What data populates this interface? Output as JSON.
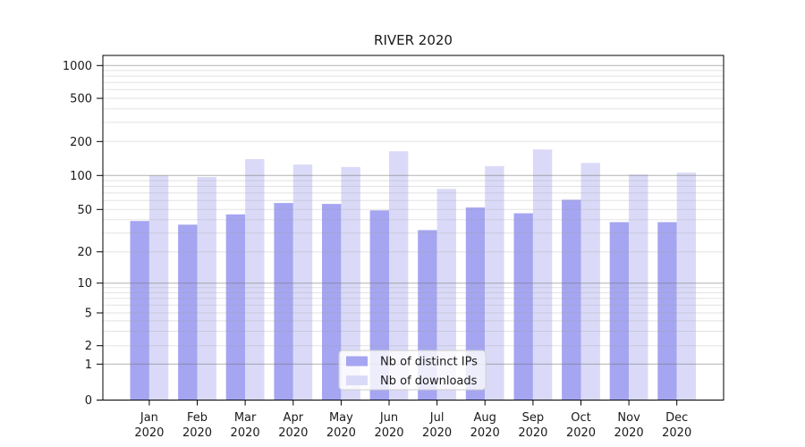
{
  "chart_data": {
    "type": "bar",
    "title": "RIVER 2020",
    "categories": [
      "Jan 2020",
      "Feb 2020",
      "Mar 2020",
      "Apr 2020",
      "May 2020",
      "Jun 2020",
      "Jul 2020",
      "Aug 2020",
      "Sep 2020",
      "Oct 2020",
      "Nov 2020",
      "Dec 2020"
    ],
    "series": [
      {
        "name": "Nb of distinct IPs",
        "color": "#a5a5f1",
        "values": [
          39,
          36,
          45,
          57,
          56,
          49,
          32,
          52,
          46,
          61,
          38,
          38
        ]
      },
      {
        "name": "Nb of downloads",
        "color": "#dadaf8",
        "values": [
          100,
          97,
          140,
          125,
          119,
          164,
          76,
          121,
          170,
          129,
          102,
          106
        ]
      }
    ],
    "xlabel": "",
    "ylabel": "",
    "yscale": "symlog",
    "yticks": [
      0,
      1,
      2,
      5,
      10,
      20,
      50,
      100,
      200,
      500,
      1000
    ],
    "ylim": [
      0,
      1000
    ],
    "grid": true,
    "legend_position": "lower center inside"
  },
  "colors": {
    "axis": "#000000",
    "text": "#1a1a1a",
    "grid_major": "#9f9f9f",
    "grid_minor": "#e7e7e7",
    "legend_border": "#cccccc"
  }
}
